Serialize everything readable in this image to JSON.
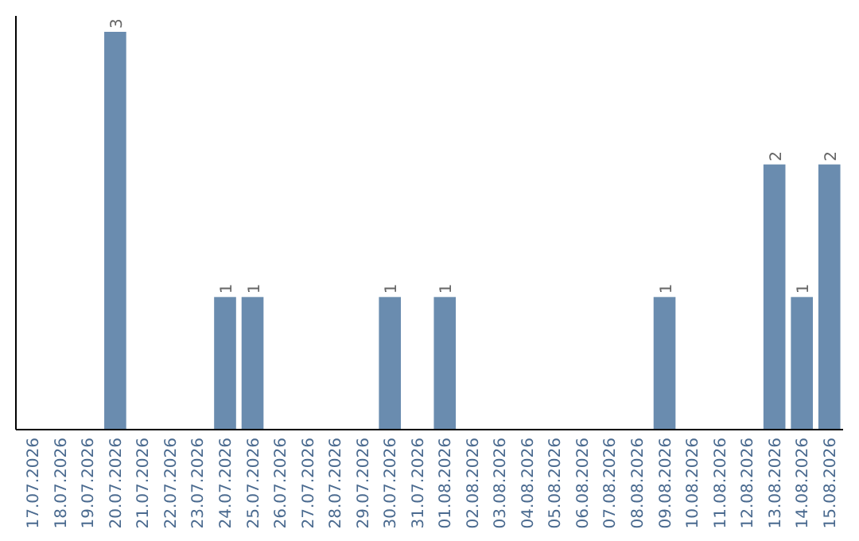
{
  "chart_data": {
    "type": "bar",
    "categories": [
      "17.07.2026",
      "18.07.2026",
      "19.07.2026",
      "20.07.2026",
      "21.07.2026",
      "22.07.2026",
      "23.07.2026",
      "24.07.2026",
      "25.07.2026",
      "26.07.2026",
      "27.07.2026",
      "28.07.2026",
      "29.07.2026",
      "30.07.2026",
      "31.07.2026",
      "01.08.2026",
      "02.08.2026",
      "03.08.2026",
      "04.08.2026",
      "05.08.2026",
      "06.08.2026",
      "07.08.2026",
      "08.08.2026",
      "09.08.2026",
      "10.08.2026",
      "11.08.2026",
      "12.08.2026",
      "13.08.2026",
      "14.08.2026",
      "15.08.2026"
    ],
    "values": [
      0,
      0,
      0,
      3,
      0,
      0,
      0,
      1,
      1,
      0,
      0,
      0,
      0,
      1,
      0,
      1,
      0,
      0,
      0,
      0,
      0,
      0,
      0,
      1,
      0,
      0,
      0,
      2,
      1,
      2
    ],
    "value_labels": [
      null,
      null,
      null,
      "3",
      null,
      null,
      null,
      "1",
      "1",
      null,
      null,
      null,
      null,
      "1",
      null,
      "1",
      null,
      null,
      null,
      null,
      null,
      null,
      null,
      "1",
      null,
      null,
      null,
      "2",
      "1",
      "2"
    ],
    "color": "#6a8caf"
  }
}
